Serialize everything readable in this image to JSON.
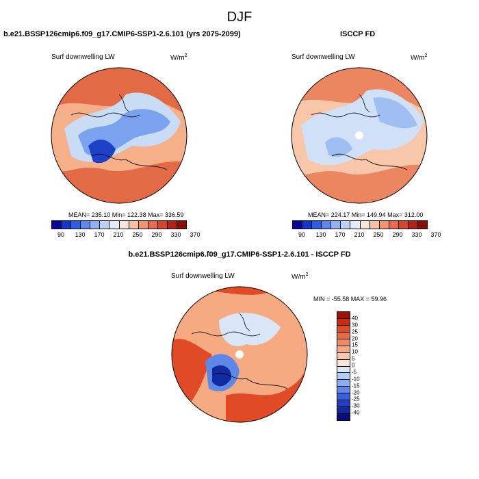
{
  "figure": {
    "title": "DJF"
  },
  "panels": {
    "left": {
      "title": "b.e21.BSSP126cmip6.f09_g17.CMIP6-SSP1-2.6.101 (yrs 2075-2099)",
      "variable": "Surf downwelling LW",
      "units_base": "W/m",
      "units_exp": "2",
      "stats": "MEAN= 235.10  Min= 122.38  Max= 336.59"
    },
    "right": {
      "title": "ISCCP FD",
      "variable": "Surf downwelling LW",
      "units_base": "W/m",
      "units_exp": "2",
      "stats": "MEAN= 224.17  Min= 149.94  Max= 312.00"
    },
    "diff": {
      "title": "b.e21.BSSP126cmip6.f09_g17.CMIP6-SSP1-2.6.101 - ISCCP FD",
      "variable": "Surf downwelling LW",
      "units_base": "W/m",
      "units_exp": "2",
      "stats": "MIN = -55.58 MAX =  59.96"
    }
  },
  "colorbar_abs": {
    "labels": [
      "90",
      "130",
      "170",
      "210",
      "250",
      "290",
      "330",
      "370"
    ],
    "colors": [
      "#08009c",
      "#1437c9",
      "#2e5ee6",
      "#5a87f0",
      "#8fb2f5",
      "#bcd3f7",
      "#e3edf9",
      "#fbe3d5",
      "#f8c0a2",
      "#f3946c",
      "#ea6b46",
      "#d84428",
      "#b42310",
      "#8a0e04"
    ]
  },
  "colorbar_diff": {
    "labels": [
      "40",
      "30",
      "25",
      "20",
      "15",
      "10",
      "5",
      "0",
      "-5",
      "-10",
      "-15",
      "-20",
      "-25",
      "-30",
      "-40"
    ],
    "colors": [
      "#a10f03",
      "#c92b11",
      "#e04a24",
      "#ea6a3f",
      "#f0895c",
      "#f5aa82",
      "#f8c8ab",
      "#fbe4d6",
      "#d8e6f8",
      "#b3cdf4",
      "#8aaef0",
      "#5e88e8",
      "#3462dc",
      "#1f3fc4",
      "#102aa2",
      "#050e7a"
    ]
  },
  "map_colors": {
    "left": {
      "base": "#e26a45",
      "mid": "#f5b08a",
      "cool": "#c8dcf6",
      "cold": "#7aa2ef",
      "coldest": "#1d41c6"
    },
    "right": {
      "base": "#ec8660",
      "mid": "#f8c6a8",
      "cool": "#cfe0f7",
      "cold": "#9fbef2",
      "coldest": "#3c66df"
    },
    "diff": {
      "base": "#e04a24",
      "mid": "#f5aa82",
      "cool": "#d8e6f8",
      "cold": "#5e88e8",
      "coldest": "#102aa2"
    }
  }
}
